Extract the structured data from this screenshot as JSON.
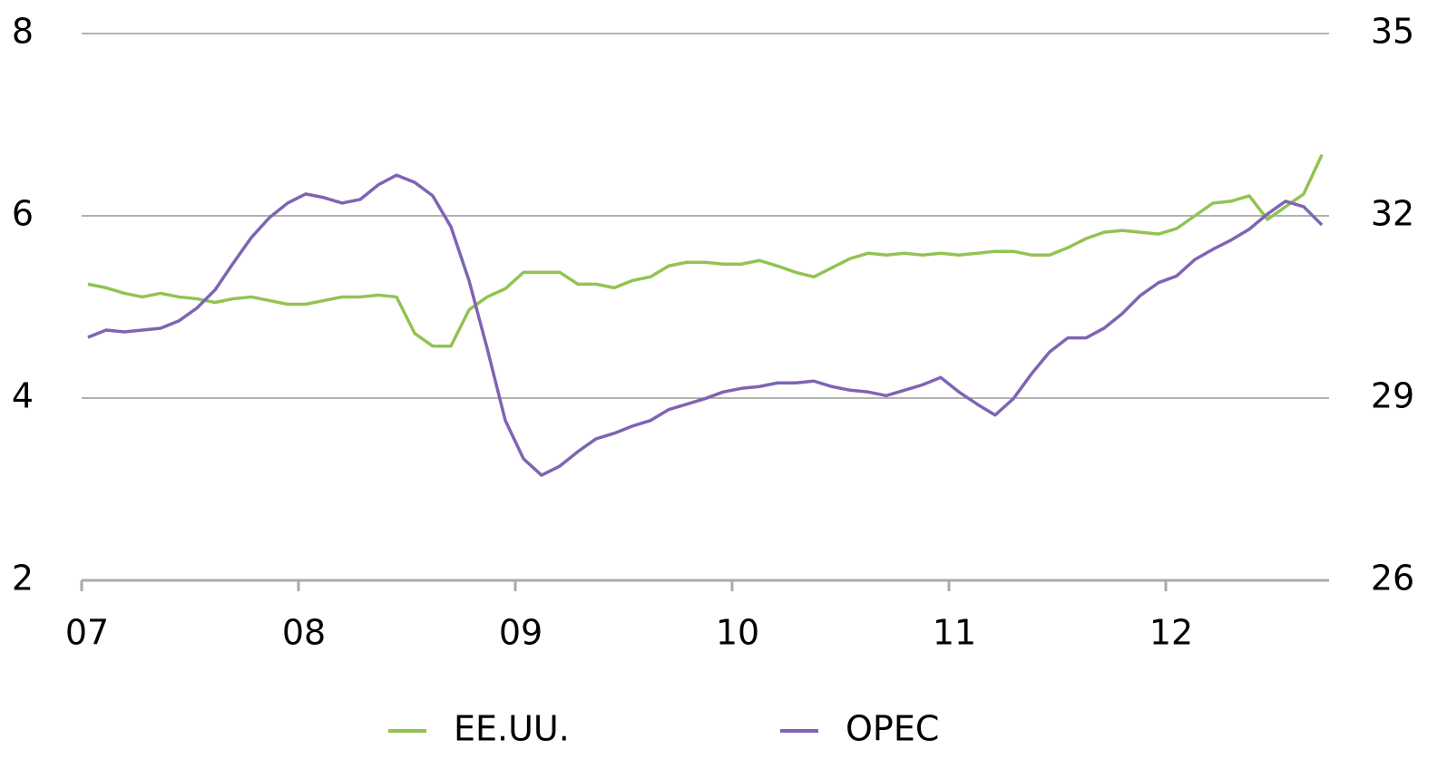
{
  "chart_data": {
    "type": "line",
    "x": [
      2007.029,
      2007.113,
      2007.197,
      2007.28,
      2007.364,
      2007.448,
      2007.531,
      2007.615,
      2007.699,
      2007.782,
      2007.866,
      2007.95,
      2008.033,
      2008.117,
      2008.201,
      2008.285,
      2008.368,
      2008.452,
      2008.536,
      2008.619,
      2008.703,
      2008.787,
      2008.87,
      2008.954,
      2009.038,
      2009.121,
      2009.205,
      2009.289,
      2009.372,
      2009.456,
      2009.54,
      2009.623,
      2009.707,
      2009.791,
      2009.874,
      2009.958,
      2010.042,
      2010.126,
      2010.209,
      2010.293,
      2010.377,
      2010.46,
      2010.544,
      2010.628,
      2010.711,
      2010.795,
      2010.879,
      2010.962,
      2011.046,
      2011.13,
      2011.213,
      2011.297,
      2011.381,
      2011.464,
      2011.548,
      2011.632,
      2011.715,
      2011.799,
      2011.883,
      2011.967,
      2012.05,
      2012.134,
      2012.218,
      2012.301,
      2012.385,
      2012.469,
      2012.552,
      2012.636,
      2012.72
    ],
    "series": [
      {
        "name": "EE.UU.",
        "color": "#92c353",
        "axis": "y",
        "values": [
          5.25,
          5.21,
          5.15,
          5.11,
          5.15,
          5.11,
          5.09,
          5.05,
          5.09,
          5.11,
          5.07,
          5.03,
          5.03,
          5.07,
          5.11,
          5.11,
          5.13,
          5.11,
          4.71,
          4.57,
          4.57,
          4.97,
          5.11,
          5.2,
          5.38,
          5.38,
          5.38,
          5.25,
          5.25,
          5.21,
          5.29,
          5.33,
          5.45,
          5.49,
          5.49,
          5.47,
          5.47,
          5.51,
          5.45,
          5.38,
          5.33,
          5.43,
          5.53,
          5.59,
          5.57,
          5.59,
          5.57,
          5.59,
          5.57,
          5.59,
          5.61,
          5.61,
          5.57,
          5.57,
          5.65,
          5.75,
          5.82,
          5.84,
          5.82,
          5.8,
          5.86,
          6.0,
          6.14,
          6.16,
          6.22,
          5.96,
          6.1,
          6.24,
          6.67
        ]
      },
      {
        "name": "OPEC",
        "color": "#7f64b3",
        "axis": "y2",
        "values": [
          30.0,
          30.12,
          30.09,
          30.12,
          30.15,
          30.27,
          30.48,
          30.78,
          31.22,
          31.64,
          31.97,
          32.21,
          32.36,
          32.3,
          32.21,
          32.27,
          32.51,
          32.67,
          32.55,
          32.33,
          31.82,
          30.93,
          29.82,
          28.63,
          28.0,
          27.73,
          27.88,
          28.12,
          28.33,
          28.42,
          28.54,
          28.63,
          28.81,
          28.9,
          28.99,
          29.1,
          29.16,
          29.19,
          29.25,
          29.25,
          29.28,
          29.19,
          29.13,
          29.1,
          29.04,
          29.13,
          29.22,
          29.34,
          29.1,
          28.9,
          28.72,
          28.99,
          29.4,
          29.76,
          29.99,
          29.99,
          30.15,
          30.39,
          30.69,
          30.9,
          31.01,
          31.28,
          31.45,
          31.6,
          31.78,
          32.03,
          32.24,
          32.15,
          31.85
        ]
      }
    ],
    "xlim": [
      2007,
      2012.753
    ],
    "xticks": [
      {
        "value": 2007,
        "label": "07"
      },
      {
        "value": 2008,
        "label": "08"
      },
      {
        "value": 2009,
        "label": "09"
      },
      {
        "value": 2010,
        "label": "10"
      },
      {
        "value": 2011,
        "label": "11"
      },
      {
        "value": 2012,
        "label": "12"
      }
    ],
    "ylim": [
      2,
      8
    ],
    "yticks": [
      2,
      4,
      6,
      8
    ],
    "y2lim": [
      26,
      35
    ],
    "y2ticks": [
      26,
      29,
      32,
      35
    ],
    "grid": true,
    "legend": "bottom"
  }
}
